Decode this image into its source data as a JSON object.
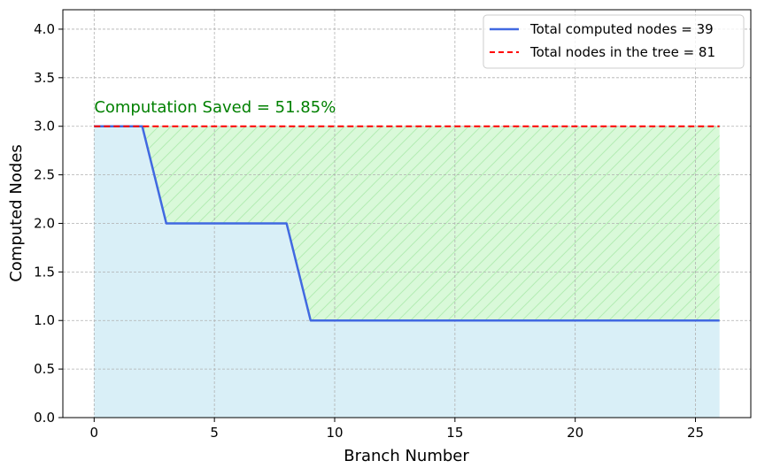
{
  "chart_data": {
    "type": "line",
    "xlabel": "Branch Number",
    "ylabel": "Computed Nodes",
    "xlim": [
      -1.3,
      27.3
    ],
    "ylim": [
      0,
      4.2
    ],
    "xticks": [
      0,
      5,
      10,
      15,
      20,
      25
    ],
    "xtick_labels": [
      "0",
      "5",
      "10",
      "15",
      "20",
      "25"
    ],
    "yticks": [
      0,
      0.5,
      1,
      1.5,
      2,
      2.5,
      3,
      3.5,
      4
    ],
    "ytick_labels": [
      "0.0",
      "0.5",
      "1.0",
      "1.5",
      "2.0",
      "2.5",
      "3.0",
      "3.5",
      "4.0"
    ],
    "grid": true,
    "legend_position": "upper right",
    "annotation": {
      "text": "Computation Saved = 51.85%",
      "x": 0,
      "y": 3.2,
      "color": "#008000"
    },
    "series": [
      {
        "name": "Total computed nodes = 39",
        "style": "solid",
        "color": "#4169e1",
        "fill": "#d9eff7",
        "x": [
          0,
          1,
          2,
          3,
          4,
          5,
          6,
          7,
          8,
          9,
          10,
          11,
          12,
          13,
          14,
          15,
          16,
          17,
          18,
          19,
          20,
          21,
          22,
          23,
          24,
          25,
          26
        ],
        "values": [
          3,
          3,
          3,
          2,
          2,
          2,
          2,
          2,
          2,
          1,
          1,
          1,
          1,
          1,
          1,
          1,
          1,
          1,
          1,
          1,
          1,
          1,
          1,
          1,
          1,
          1,
          1
        ]
      },
      {
        "name": "Total nodes in the tree = 81",
        "style": "dashed",
        "color": "#ff0000",
        "fill": "#d9f9d9",
        "hatch_color": "#b4ecb4",
        "x": [
          0,
          26
        ],
        "values": [
          3,
          3
        ]
      }
    ]
  }
}
